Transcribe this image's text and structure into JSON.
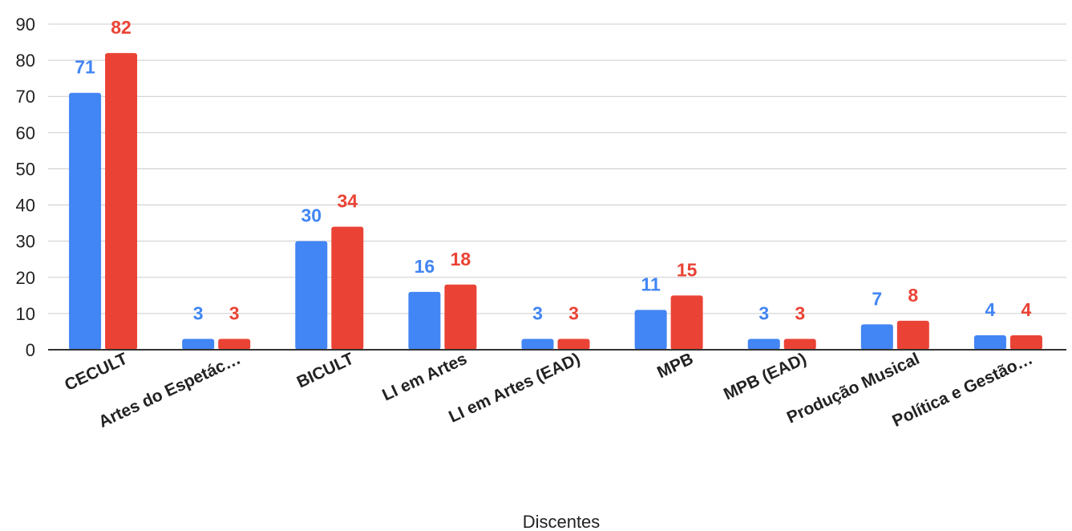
{
  "chart_data": {
    "type": "bar",
    "xlabel": "Discentes",
    "ylabel": "",
    "ylim": [
      0,
      90
    ],
    "yticks": [
      0,
      10,
      20,
      30,
      40,
      50,
      60,
      70,
      80,
      90
    ],
    "grid": true,
    "categories": [
      "CECULT",
      "Artes do Espetác…",
      "BICULT",
      "LI em Artes",
      "LI em Artes (EAD)",
      "MPB",
      "MPB (EAD)",
      "Produção Musical",
      "Política e Gestão…"
    ],
    "series": [
      {
        "values": [
          71,
          3,
          30,
          16,
          3,
          11,
          3,
          7,
          4
        ],
        "color": "#4285f4"
      },
      {
        "values": [
          82,
          3,
          34,
          18,
          3,
          15,
          3,
          8,
          4
        ],
        "color": "#ea4335"
      }
    ]
  }
}
